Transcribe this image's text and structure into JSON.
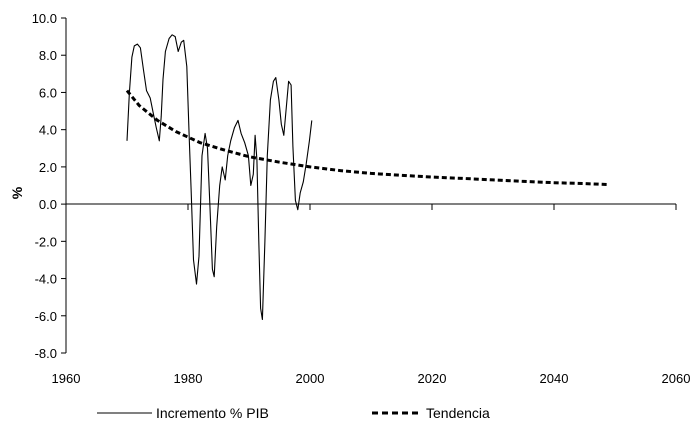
{
  "chart_data": {
    "type": "line",
    "ylabel": "%",
    "xlabel": "",
    "title": "",
    "xlim": [
      1960,
      2060
    ],
    "ylim": [
      -8,
      10
    ],
    "x_ticks": [
      1960,
      1980,
      2000,
      2020,
      2040,
      2060
    ],
    "x_tick_labels": [
      "1960",
      "1980",
      "2000",
      "2020",
      "2040",
      "2060"
    ],
    "y_ticks": [
      -8,
      -6,
      -4,
      -2,
      0,
      2,
      4,
      6,
      8,
      10
    ],
    "y_tick_labels": [
      "-8.0",
      "-6.0",
      "-4.0",
      "-2.0",
      "0.0",
      "2.0",
      "4.0",
      "6.0",
      "8.0",
      "10.0"
    ],
    "grid": false,
    "legend_position": "bottom",
    "series": [
      {
        "name": "Incremento % PIB",
        "style": "solid",
        "color": "#000000",
        "points": [
          [
            1970.0,
            3.4
          ],
          [
            1970.4,
            6.0
          ],
          [
            1970.8,
            7.9
          ],
          [
            1971.2,
            8.5
          ],
          [
            1971.7,
            8.6
          ],
          [
            1972.2,
            8.4
          ],
          [
            1972.7,
            7.2
          ],
          [
            1973.2,
            6.1
          ],
          [
            1973.8,
            5.7
          ],
          [
            1974.3,
            4.9
          ],
          [
            1974.8,
            4.1
          ],
          [
            1975.3,
            3.4
          ],
          [
            1975.6,
            4.7
          ],
          [
            1975.9,
            6.7
          ],
          [
            1976.3,
            8.2
          ],
          [
            1976.9,
            8.9
          ],
          [
            1977.4,
            9.1
          ],
          [
            1977.9,
            9.0
          ],
          [
            1978.4,
            8.2
          ],
          [
            1978.9,
            8.7
          ],
          [
            1979.3,
            8.8
          ],
          [
            1979.8,
            7.4
          ],
          [
            1980.2,
            3.6
          ],
          [
            1980.5,
            0.8
          ],
          [
            1980.9,
            -3.0
          ],
          [
            1981.4,
            -4.3
          ],
          [
            1981.8,
            -2.8
          ],
          [
            1982.3,
            2.6
          ],
          [
            1982.8,
            3.8
          ],
          [
            1983.2,
            3.0
          ],
          [
            1983.6,
            -0.2
          ],
          [
            1984.0,
            -3.5
          ],
          [
            1984.3,
            -3.9
          ],
          [
            1984.7,
            -1.2
          ],
          [
            1985.2,
            1.0
          ],
          [
            1985.6,
            2.0
          ],
          [
            1986.1,
            1.3
          ],
          [
            1986.5,
            2.6
          ],
          [
            1987.0,
            3.4
          ],
          [
            1987.6,
            4.1
          ],
          [
            1988.2,
            4.5
          ],
          [
            1988.7,
            3.8
          ],
          [
            1989.3,
            3.3
          ],
          [
            1989.9,
            2.6
          ],
          [
            1990.3,
            1.0
          ],
          [
            1990.7,
            1.6
          ],
          [
            1991.0,
            3.7
          ],
          [
            1991.3,
            2.4
          ],
          [
            1991.6,
            -2.0
          ],
          [
            1991.9,
            -5.6
          ],
          [
            1992.2,
            -6.2
          ],
          [
            1992.6,
            -2.0
          ],
          [
            1993.0,
            2.6
          ],
          [
            1993.5,
            5.6
          ],
          [
            1994.0,
            6.6
          ],
          [
            1994.4,
            6.8
          ],
          [
            1994.9,
            5.6
          ],
          [
            1995.3,
            4.3
          ],
          [
            1995.7,
            3.7
          ],
          [
            1996.2,
            5.5
          ],
          [
            1996.5,
            6.6
          ],
          [
            1996.9,
            6.4
          ],
          [
            1997.2,
            3.1
          ],
          [
            1997.6,
            0.2
          ],
          [
            1998.0,
            -0.3
          ],
          [
            1998.4,
            0.6
          ],
          [
            1998.9,
            1.2
          ],
          [
            1999.4,
            2.2
          ],
          [
            1999.9,
            3.4
          ],
          [
            2000.3,
            4.5
          ]
        ]
      },
      {
        "name": "Tendencia",
        "style": "dashed",
        "color": "#000000",
        "points": [
          [
            1970,
            6.1
          ],
          [
            1972,
            5.3
          ],
          [
            1975,
            4.5
          ],
          [
            1978,
            3.9
          ],
          [
            1982,
            3.3
          ],
          [
            1986,
            2.9
          ],
          [
            1990,
            2.55
          ],
          [
            1995,
            2.25
          ],
          [
            2000,
            2.0
          ],
          [
            2005,
            1.8
          ],
          [
            2010,
            1.65
          ],
          [
            2015,
            1.55
          ],
          [
            2020,
            1.45
          ],
          [
            2025,
            1.38
          ],
          [
            2030,
            1.3
          ],
          [
            2035,
            1.22
          ],
          [
            2040,
            1.15
          ],
          [
            2045,
            1.1
          ],
          [
            2049,
            1.05
          ]
        ]
      }
    ]
  }
}
